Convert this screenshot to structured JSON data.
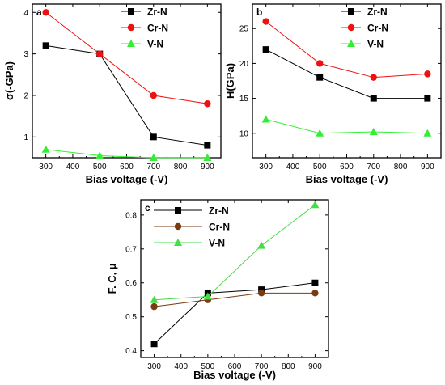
{
  "chart_data": [
    {
      "type": "line",
      "panel": "a",
      "xlabel": "Bias voltage (-V)",
      "ylabel": "σ(-GPa)",
      "xlim": [
        250,
        950
      ],
      "ylim": [
        0.5,
        4.2
      ],
      "xticks": [
        300,
        400,
        500,
        600,
        700,
        800,
        900
      ],
      "yticks": [
        1,
        2,
        3,
        4
      ],
      "legend_position": "top-right",
      "grid": false,
      "series": [
        {
          "name": "Zr-N",
          "color": "#000000",
          "marker": "square",
          "x": [
            300,
            500,
            700,
            900
          ],
          "y": [
            3.2,
            3.0,
            1.0,
            0.8
          ]
        },
        {
          "name": "Cr-N",
          "color": "#ee1111",
          "marker": "circle",
          "x": [
            300,
            500,
            700,
            900
          ],
          "y": [
            4.0,
            3.0,
            2.0,
            1.8
          ]
        },
        {
          "name": "V-N",
          "color": "#33ee33",
          "marker": "triangle",
          "x": [
            300,
            500,
            700,
            900
          ],
          "y": [
            0.7,
            0.55,
            0.5,
            0.5
          ]
        }
      ]
    },
    {
      "type": "line",
      "panel": "b",
      "xlabel": "Bias voltage (-V)",
      "ylabel": "H(GPa)",
      "xlim": [
        250,
        950
      ],
      "ylim": [
        6.5,
        28.5
      ],
      "xticks": [
        300,
        400,
        500,
        600,
        700,
        800,
        900
      ],
      "yticks": [
        10,
        15,
        20,
        25
      ],
      "legend_position": "top-right",
      "grid": false,
      "series": [
        {
          "name": "Zr-N",
          "color": "#000000",
          "marker": "square",
          "x": [
            300,
            500,
            700,
            900
          ],
          "y": [
            22,
            18,
            15,
            15
          ]
        },
        {
          "name": "Cr-N",
          "color": "#ee1111",
          "marker": "circle",
          "x": [
            300,
            500,
            700,
            900
          ],
          "y": [
            26,
            20,
            18,
            18.5
          ]
        },
        {
          "name": "V-N",
          "color": "#33ee33",
          "marker": "triangle",
          "x": [
            300,
            500,
            700,
            900
          ],
          "y": [
            12,
            10,
            10.2,
            10
          ]
        }
      ]
    },
    {
      "type": "line",
      "panel": "c",
      "xlabel": "Bias voltage (-V)",
      "ylabel": "F. C, µ",
      "xlim": [
        250,
        950
      ],
      "ylim": [
        0.38,
        0.845
      ],
      "xticks": [
        300,
        400,
        500,
        600,
        700,
        800,
        900
      ],
      "yticks": [
        0.4,
        0.5,
        0.6,
        0.7,
        0.8
      ],
      "legend_position": "top-left",
      "grid": false,
      "series": [
        {
          "name": "Zr-N",
          "color": "#000000",
          "marker": "square",
          "x": [
            300,
            500,
            700,
            900
          ],
          "y": [
            0.42,
            0.57,
            0.58,
            0.6
          ]
        },
        {
          "name": "Cr-N",
          "color": "#7a3b12",
          "marker": "circle",
          "x": [
            300,
            500,
            700,
            900
          ],
          "y": [
            0.53,
            0.55,
            0.57,
            0.57
          ]
        },
        {
          "name": "V-N",
          "color": "#44dd44",
          "marker": "triangle",
          "x": [
            300,
            500,
            700,
            900
          ],
          "y": [
            0.55,
            0.56,
            0.71,
            0.83
          ]
        }
      ]
    }
  ]
}
